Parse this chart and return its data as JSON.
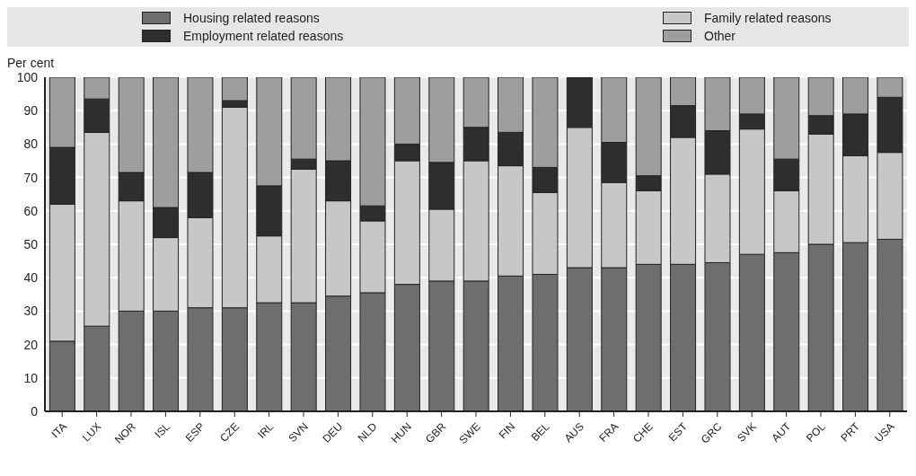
{
  "chart_data": {
    "type": "bar",
    "stacked": true,
    "ylabel": "Per cent",
    "categories": [
      "ITA",
      "LUX",
      "NOR",
      "ISL",
      "ESP",
      "CZE",
      "IRL",
      "SVN",
      "DEU",
      "NLD",
      "HUN",
      "GBR",
      "SWE",
      "FIN",
      "BEL",
      "AUS",
      "FRA",
      "CHE",
      "EST",
      "GRC",
      "SVK",
      "AUT",
      "POL",
      "PRT",
      "USA"
    ],
    "series": [
      {
        "name": "Housing related reasons",
        "color": "#6d6e70",
        "values": [
          21,
          25.5,
          30,
          30,
          31,
          31,
          32.5,
          32.5,
          34.5,
          35.5,
          38,
          39,
          39,
          40.5,
          41,
          43,
          43,
          44,
          44,
          44.5,
          47,
          47.5,
          50,
          50.5,
          51.5
        ]
      },
      {
        "name": "Family related reasons",
        "color": "#c6c7c9",
        "values": [
          41,
          58,
          33,
          22,
          27,
          60,
          20,
          40,
          28.5,
          21.5,
          37,
          21.5,
          36,
          33,
          24.5,
          42,
          25.5,
          22,
          38,
          26.5,
          37.5,
          18.5,
          33,
          26,
          26
        ]
      },
      {
        "name": "Employment related reasons",
        "color": "#2f2d2e",
        "values": [
          17,
          10,
          8.5,
          9,
          13.5,
          2,
          15,
          3,
          12,
          4.5,
          5,
          14,
          10,
          10,
          7.5,
          15,
          12,
          4.5,
          9.5,
          13,
          4.5,
          9.5,
          5.5,
          12.5,
          16.5
        ]
      },
      {
        "name": "Other",
        "color": "#9d9ea0",
        "values": [
          21,
          6.5,
          28.5,
          39,
          28.5,
          7,
          32.5,
          24.5,
          25,
          38.5,
          20,
          25.5,
          15,
          16.5,
          27,
          0,
          19.5,
          29.5,
          8.5,
          16,
          11,
          24.5,
          11.5,
          11,
          6
        ]
      }
    ],
    "ylim": [
      0,
      100
    ],
    "yticks": [
      0,
      10,
      20,
      30,
      40,
      50,
      60,
      70,
      80,
      90,
      100
    ],
    "grid": "y",
    "legend": "top"
  }
}
